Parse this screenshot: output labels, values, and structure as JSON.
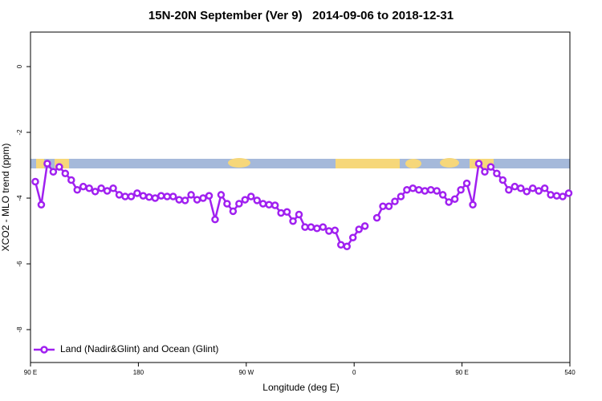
{
  "chart_data": {
    "type": "line",
    "title": "15N-20N September (Ver 9)   2014-09-06 to 2018-12-31",
    "x_label": "Longitude (deg E)",
    "y_label": "XCO2 - MLO trend (ppm)",
    "xlim": [
      90,
      540
    ],
    "ylim": [
      -9,
      1.05
    ],
    "xticks": [
      {
        "value": 90,
        "label": "90 E"
      },
      180,
      {
        "value": 270,
        "label": "90 W"
      },
      {
        "value": 360,
        "label": "0"
      },
      {
        "value": 450,
        "label": "90 E"
      },
      540
    ],
    "yticks": [
      0,
      -2,
      -4,
      -6,
      -8
    ],
    "legend": "bottom-left",
    "x": [
      94,
      99,
      104,
      109,
      114,
      119,
      124,
      129,
      134,
      139,
      144,
      149,
      154,
      159,
      164,
      169,
      174,
      179,
      184,
      189,
      194,
      199,
      204,
      209,
      214,
      219,
      224,
      229,
      234,
      239,
      244,
      249,
      254,
      259,
      264,
      269,
      274,
      279,
      284,
      289,
      294,
      299,
      304,
      309,
      314,
      319,
      324,
      329,
      334,
      339,
      344,
      349,
      354,
      359,
      364,
      369,
      374,
      379,
      384,
      389,
      394,
      399,
      404,
      409,
      414,
      419,
      424,
      429,
      434,
      439,
      444,
      449,
      454,
      459,
      464,
      469,
      474,
      479,
      484,
      489,
      494,
      499,
      504,
      509,
      514,
      519,
      524,
      529,
      534,
      539
    ],
    "series": [
      {
        "name": "Land (Nadir&Glint) and Ocean (Glint)",
        "color": "#a020f0",
        "values": [
          -3.5,
          -4.2,
          -2.95,
          -3.2,
          -3.05,
          -3.25,
          -3.45,
          -3.75,
          -3.65,
          -3.7,
          -3.8,
          -3.7,
          -3.78,
          -3.7,
          -3.9,
          -3.95,
          -3.95,
          -3.85,
          -3.93,
          -3.97,
          -4.0,
          -3.93,
          -3.95,
          -3.95,
          -4.05,
          -4.07,
          -3.9,
          -4.05,
          -4.0,
          -3.93,
          -4.65,
          -3.9,
          -4.17,
          -4.4,
          -4.17,
          -4.05,
          -3.95,
          -4.07,
          -4.17,
          -4.2,
          -4.22,
          -4.45,
          -4.42,
          -4.7,
          -4.5,
          -4.88,
          -4.88,
          -4.92,
          -4.88,
          -5.0,
          -4.98,
          -5.42,
          -5.47,
          -5.2,
          -4.95,
          -4.85,
          null,
          -4.6,
          -4.25,
          -4.25,
          -4.1,
          -3.95,
          -3.75,
          -3.7,
          -3.75,
          -3.78,
          -3.75,
          -3.78,
          -3.9,
          -4.12,
          -4.03,
          -3.75,
          -3.55,
          -4.2,
          -2.95,
          -3.2,
          -3.05,
          -3.25,
          -3.45,
          -3.75,
          -3.65,
          -3.7,
          -3.8,
          -3.7,
          -3.78,
          -3.7,
          -3.9,
          -3.93,
          -3.95,
          -3.85
        ]
      }
    ]
  }
}
